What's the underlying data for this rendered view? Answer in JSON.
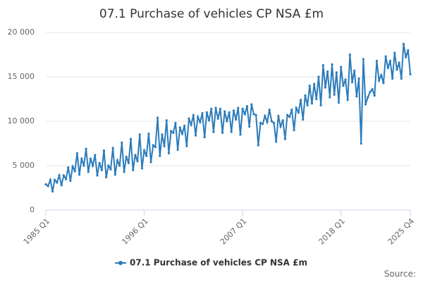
{
  "chart_data": {
    "type": "line",
    "title": "07.1 Purchase of vehicles CP NSA £m",
    "source": "Source:",
    "categories": [
      "1985 Q1",
      null,
      null,
      null,
      null,
      null,
      null,
      null,
      null,
      null,
      null,
      null,
      null,
      null,
      null,
      null,
      null,
      null,
      null,
      null,
      null,
      null,
      null,
      null,
      null,
      null,
      null,
      null,
      null,
      null,
      null,
      null,
      null,
      null,
      null,
      null,
      null,
      null,
      null,
      null,
      null,
      null,
      null,
      null,
      "1996 Q1",
      null,
      null,
      null,
      null,
      null,
      null,
      null,
      null,
      null,
      null,
      null,
      null,
      null,
      null,
      null,
      null,
      null,
      null,
      null,
      null,
      null,
      null,
      null,
      null,
      null,
      null,
      null,
      null,
      null,
      null,
      null,
      null,
      null,
      null,
      null,
      null,
      null,
      null,
      null,
      null,
      null,
      null,
      null,
      "2007 Q1",
      null,
      null,
      null,
      null,
      null,
      null,
      null,
      null,
      null,
      null,
      null,
      null,
      null,
      null,
      null,
      null,
      null,
      null,
      null,
      null,
      null,
      null,
      null,
      null,
      null,
      null,
      null,
      null,
      null,
      null,
      null,
      null,
      null,
      null,
      null,
      null,
      null,
      null,
      null,
      null,
      null,
      null,
      null,
      "2018 Q1",
      null,
      null,
      null,
      null,
      null,
      null,
      null,
      null,
      null,
      null,
      null,
      null,
      null,
      null,
      null,
      null,
      null,
      null,
      null,
      null,
      null,
      null,
      null,
      null,
      null,
      null,
      null,
      null,
      null,
      null,
      "2025 Q4"
    ],
    "series": [
      {
        "name": "07.1 Purchase of vehicles CP NSA £m",
        "color": "#2b7bba",
        "values": [
          2900,
          2700,
          3400,
          2100,
          3400,
          3100,
          3900,
          2800,
          3900,
          3500,
          4800,
          3300,
          4900,
          4400,
          6400,
          4000,
          5800,
          5000,
          6900,
          4300,
          5800,
          5000,
          6200,
          3900,
          5300,
          4500,
          6700,
          3700,
          5000,
          4600,
          7000,
          4000,
          5600,
          5000,
          7600,
          4300,
          6000,
          5300,
          8000,
          4500,
          6200,
          5500,
          8500,
          4700,
          6700,
          6100,
          8600,
          5400,
          7300,
          7100,
          10400,
          6100,
          8500,
          7200,
          10100,
          6400,
          8900,
          8700,
          9800,
          6800,
          9300,
          8600,
          9500,
          7200,
          10300,
          9600,
          10700,
          8400,
          10500,
          9900,
          10900,
          8200,
          11000,
          10100,
          11400,
          8800,
          11500,
          10300,
          11400,
          8700,
          11100,
          10000,
          11000,
          8800,
          11200,
          10200,
          11500,
          8500,
          11400,
          10800,
          11700,
          9400,
          11900,
          10800,
          10700,
          7300,
          9800,
          9700,
          10600,
          9900,
          11300,
          10000,
          9800,
          7700,
          10600,
          9400,
          10100,
          8000,
          10700,
          10500,
          11300,
          9000,
          11500,
          11000,
          12400,
          10200,
          12900,
          11800,
          14000,
          12000,
          14200,
          12500,
          15000,
          11800,
          16300,
          13800,
          15600,
          12700,
          16400,
          13000,
          15500,
          12100,
          16100,
          14000,
          14700,
          12400,
          17500,
          14400,
          15700,
          12800,
          14800,
          7500,
          17000,
          11900,
          12700,
          13300,
          13600,
          12900,
          16800,
          14600,
          15200,
          14300,
          17300,
          16000,
          16800,
          14800,
          17700,
          15800,
          16600,
          14800,
          18700,
          17200,
          18000,
          15300
        ]
      }
    ],
    "ylim": [
      0,
      20000
    ],
    "yticks": [
      0,
      {
        "value": 5000,
        "label": "5 000"
      },
      {
        "value": 10000,
        "label": "10 000"
      },
      {
        "value": 15000,
        "label": "15 000"
      },
      {
        "value": 20000,
        "label": "20 000"
      }
    ],
    "grid": true,
    "legend": "bottom"
  }
}
